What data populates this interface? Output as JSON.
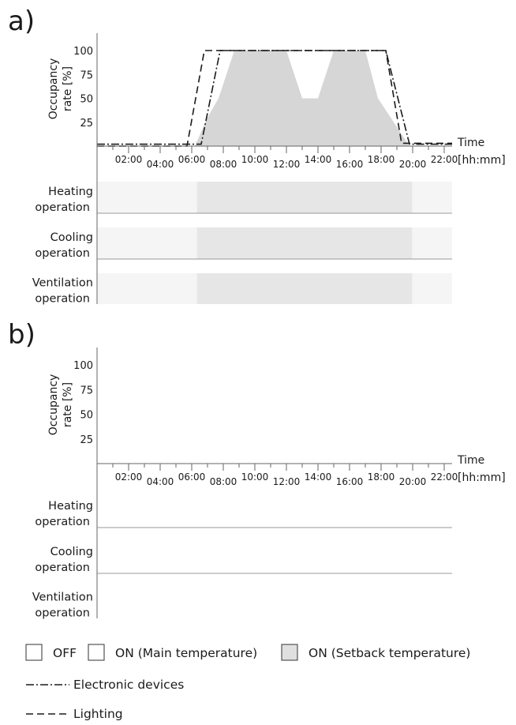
{
  "panels": [
    {
      "label": "a)",
      "ylabel_lines": [
        "Occupancy",
        "rate [%]"
      ],
      "time_label": "Time",
      "time_unit": "[hh:mm]",
      "operations": [
        {
          "lines": [
            "Heating",
            "operation"
          ],
          "state": "setback",
          "on_from": "06:20",
          "on_to": "19:58"
        },
        {
          "lines": [
            "Cooling",
            "operation"
          ],
          "state": "setback",
          "on_from": "06:20",
          "on_to": "19:58"
        },
        {
          "lines": [
            "Ventilation",
            "operation"
          ],
          "state": "setback",
          "on_from": "06:20",
          "on_to": "19:58"
        }
      ]
    },
    {
      "label": "b)",
      "ylabel_lines": [
        "Occupancy",
        "rate [%]"
      ],
      "time_label": "Time",
      "time_unit": "[hh:mm]",
      "operations": [
        {
          "lines": [
            "Heating",
            "operation"
          ]
        },
        {
          "lines": [
            "Cooling",
            "operation"
          ]
        },
        {
          "lines": [
            "Ventilation",
            "operation"
          ]
        }
      ]
    }
  ],
  "chart_data": [
    {
      "type": "area",
      "panel": "a)",
      "yticks": [
        25,
        50,
        75,
        100
      ],
      "xticks": [
        "02:00",
        "04:00",
        "06:00",
        "08:00",
        "10:00",
        "12:00",
        "14:00",
        "16:00",
        "18:00",
        "20:00",
        "22:00"
      ],
      "xlim_hours": [
        0,
        22.5
      ],
      "ylim": [
        0,
        120
      ],
      "series": [
        {
          "name": "Occupancy",
          "style": "filled",
          "color": "#d6d6d6",
          "x_hours": [
            6.2,
            7.0,
            7.7,
            8.7,
            12.0,
            13.0,
            14.0,
            15.0,
            17.0,
            17.8,
            19.0,
            19.8
          ],
          "y": [
            0,
            30,
            50,
            100,
            100,
            50,
            50,
            100,
            100,
            50,
            20,
            0
          ]
        },
        {
          "name": "Electronic devices",
          "style": "dash-dot",
          "x_hours": [
            0.0,
            6.6,
            7.8,
            18.3,
            19.8,
            22.5
          ],
          "y": [
            2,
            2,
            100,
            100,
            2,
            2
          ]
        },
        {
          "name": "Lighting",
          "style": "dashed",
          "x_hours": [
            0.0,
            5.7,
            6.8,
            18.3,
            19.3,
            22.5
          ],
          "y": [
            0,
            0,
            100,
            100,
            3,
            3
          ]
        }
      ]
    },
    {
      "type": "area",
      "panel": "b)",
      "yticks": [
        25,
        50,
        75,
        100
      ],
      "xticks": [
        "02:00",
        "04:00",
        "06:00",
        "08:00",
        "10:00",
        "12:00",
        "14:00",
        "16:00",
        "18:00",
        "20:00",
        "22:00"
      ],
      "xlim_hours": [
        0,
        22.5
      ],
      "ylim": [
        0,
        120
      ],
      "series": []
    }
  ],
  "legend": {
    "boxes": [
      {
        "label": "OFF",
        "fill": "#ffffff"
      },
      {
        "label": "ON (Main temperature)",
        "fill": "#ffffff"
      },
      {
        "label": "ON (Setback temperature)",
        "fill": "#e0e0e0"
      }
    ],
    "lines": [
      {
        "label": "Electronic devices",
        "style": "dash-dot"
      },
      {
        "label": "Lighting",
        "style": "dashed"
      }
    ]
  },
  "colors": {
    "off_band": "#f5f5f5",
    "setback_band": "#e6e6e6",
    "occupancy_fill": "#d6d6d6",
    "axis": "#666666",
    "ink": "#1a1a1a"
  }
}
